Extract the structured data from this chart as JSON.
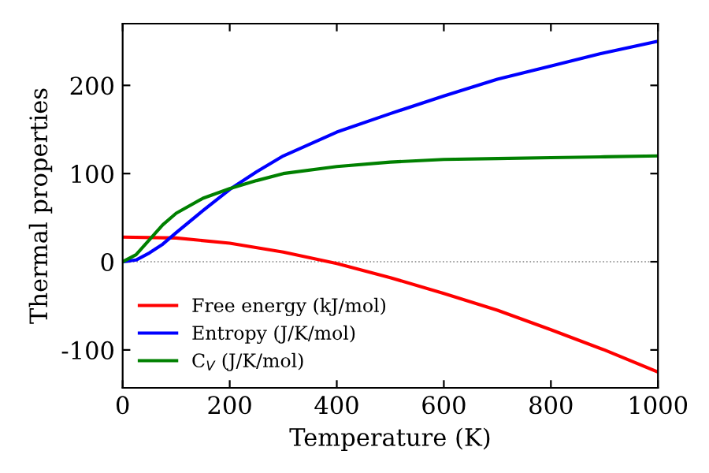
{
  "chart_data": {
    "type": "line",
    "xlabel": "Temperature (K)",
    "ylabel": "Thermal properties",
    "xlim": [
      0,
      1000
    ],
    "ylim": [
      -143,
      270
    ],
    "xticks": [
      0,
      200,
      400,
      600,
      800,
      1000
    ],
    "yticks": [
      -100,
      0,
      100,
      200
    ],
    "legend": "bottom left",
    "grid": false,
    "marker": "none",
    "line_style": "solid",
    "ref_lines": [
      {
        "axis": "y",
        "value": 0,
        "color": "#808080",
        "line_style": "dotted"
      }
    ],
    "series": [
      {
        "name": "Free energy (kJ/mol)",
        "color": "#ff0000",
        "x": [
          0,
          100,
          200,
          300,
          400,
          500,
          600,
          700,
          800,
          900,
          1000
        ],
        "values": [
          28,
          27,
          21,
          11,
          -2,
          -18,
          -36,
          -55,
          -77,
          -100,
          -125
        ]
      },
      {
        "name": "Entropy (J/K/mol)",
        "color": "#0000ff",
        "x": [
          0,
          25,
          50,
          75,
          100,
          150,
          200,
          250,
          300,
          400,
          500,
          600,
          700,
          800,
          900,
          1000
        ],
        "values": [
          0,
          2,
          10,
          20,
          33,
          58,
          82,
          102,
          120,
          147,
          168,
          188,
          207,
          222,
          237,
          250
        ]
      },
      {
        "name": "C$_{V}$ (J/K/mol)",
        "color": "#008000",
        "x": [
          0,
          25,
          50,
          75,
          100,
          150,
          200,
          250,
          300,
          400,
          500,
          600,
          700,
          800,
          900,
          1000
        ],
        "values": [
          0,
          8,
          25,
          42,
          55,
          72,
          83,
          92,
          100,
          108,
          113,
          116,
          117,
          118,
          119,
          120
        ]
      }
    ]
  }
}
